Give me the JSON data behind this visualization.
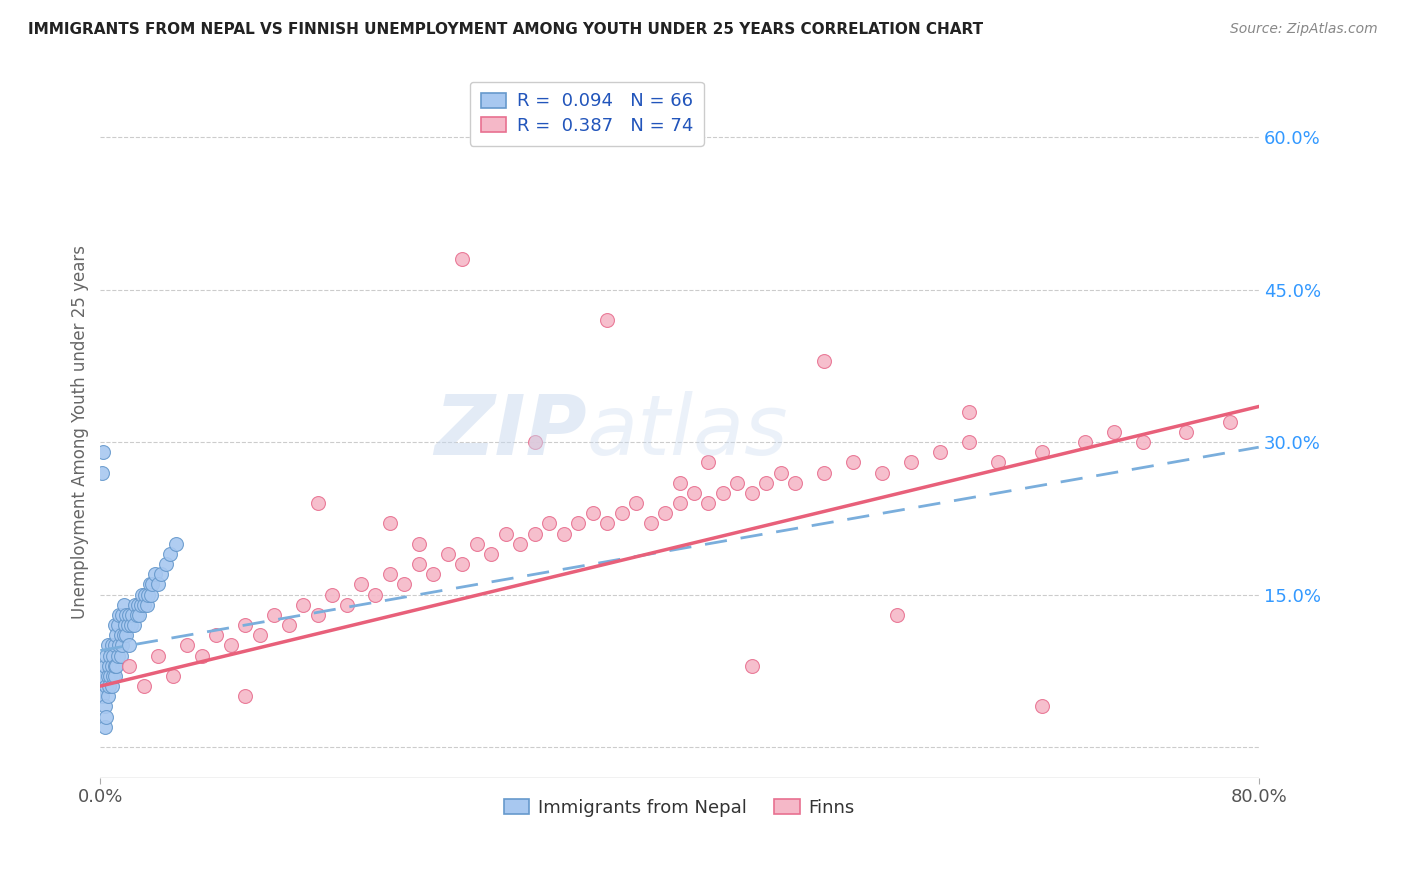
{
  "title": "IMMIGRANTS FROM NEPAL VS FINNISH UNEMPLOYMENT AMONG YOUTH UNDER 25 YEARS CORRELATION CHART",
  "source": "Source: ZipAtlas.com",
  "ylabel": "Unemployment Among Youth under 25 years",
  "legend_label_blue": "Immigrants from Nepal",
  "legend_label_pink": "Finns",
  "r_blue": 0.094,
  "n_blue": 66,
  "r_pink": 0.387,
  "n_pink": 74,
  "color_blue_fill": "#a8c8f0",
  "color_blue_edge": "#6699cc",
  "color_pink_fill": "#f5b8c8",
  "color_pink_edge": "#e87090",
  "color_blue_line": "#7aaedc",
  "color_pink_line": "#e8607a",
  "color_r_value": "#2255bb",
  "yticks_right": [
    0.0,
    0.15,
    0.3,
    0.45,
    0.6
  ],
  "ytick_labels_right": [
    "",
    "15.0%",
    "30.0%",
    "45.0%",
    "60.0%"
  ],
  "xmin": 0.0,
  "xmax": 0.8,
  "ymin": -0.03,
  "ymax": 0.65,
  "blue_scatter_x": [
    0.001,
    0.002,
    0.003,
    0.003,
    0.004,
    0.004,
    0.005,
    0.005,
    0.005,
    0.006,
    0.006,
    0.007,
    0.007,
    0.008,
    0.008,
    0.008,
    0.009,
    0.009,
    0.01,
    0.01,
    0.01,
    0.01,
    0.011,
    0.011,
    0.012,
    0.012,
    0.013,
    0.013,
    0.014,
    0.014,
    0.015,
    0.015,
    0.016,
    0.016,
    0.017,
    0.018,
    0.018,
    0.019,
    0.02,
    0.02,
    0.021,
    0.022,
    0.023,
    0.024,
    0.025,
    0.026,
    0.027,
    0.028,
    0.029,
    0.03,
    0.031,
    0.032,
    0.033,
    0.034,
    0.035,
    0.036,
    0.038,
    0.04,
    0.042,
    0.045,
    0.048,
    0.052,
    0.001,
    0.002,
    0.003,
    0.004
  ],
  "blue_scatter_y": [
    0.05,
    0.07,
    0.04,
    0.08,
    0.06,
    0.09,
    0.05,
    0.07,
    0.1,
    0.06,
    0.08,
    0.07,
    0.09,
    0.06,
    0.08,
    0.1,
    0.07,
    0.09,
    0.07,
    0.08,
    0.1,
    0.12,
    0.08,
    0.11,
    0.09,
    0.12,
    0.1,
    0.13,
    0.09,
    0.11,
    0.1,
    0.13,
    0.11,
    0.14,
    0.12,
    0.11,
    0.13,
    0.12,
    0.1,
    0.13,
    0.12,
    0.13,
    0.12,
    0.14,
    0.13,
    0.14,
    0.13,
    0.14,
    0.15,
    0.14,
    0.15,
    0.14,
    0.15,
    0.16,
    0.15,
    0.16,
    0.17,
    0.16,
    0.17,
    0.18,
    0.19,
    0.2,
    0.27,
    0.29,
    0.02,
    0.03
  ],
  "pink_scatter_x": [
    0.02,
    0.03,
    0.04,
    0.05,
    0.06,
    0.07,
    0.08,
    0.09,
    0.1,
    0.11,
    0.12,
    0.13,
    0.14,
    0.15,
    0.16,
    0.17,
    0.18,
    0.19,
    0.2,
    0.21,
    0.22,
    0.23,
    0.24,
    0.25,
    0.26,
    0.27,
    0.28,
    0.29,
    0.3,
    0.31,
    0.32,
    0.33,
    0.34,
    0.35,
    0.36,
    0.37,
    0.38,
    0.39,
    0.4,
    0.41,
    0.42,
    0.43,
    0.44,
    0.45,
    0.46,
    0.47,
    0.48,
    0.5,
    0.52,
    0.54,
    0.56,
    0.58,
    0.6,
    0.62,
    0.65,
    0.68,
    0.7,
    0.72,
    0.75,
    0.78,
    0.25,
    0.35,
    0.42,
    0.5,
    0.3,
    0.6,
    0.2,
    0.15,
    0.4,
    0.1,
    0.55,
    0.22,
    0.45,
    0.65
  ],
  "pink_scatter_y": [
    0.08,
    0.06,
    0.09,
    0.07,
    0.1,
    0.09,
    0.11,
    0.1,
    0.12,
    0.11,
    0.13,
    0.12,
    0.14,
    0.13,
    0.15,
    0.14,
    0.16,
    0.15,
    0.17,
    0.16,
    0.18,
    0.17,
    0.19,
    0.18,
    0.2,
    0.19,
    0.21,
    0.2,
    0.21,
    0.22,
    0.21,
    0.22,
    0.23,
    0.22,
    0.23,
    0.24,
    0.22,
    0.23,
    0.24,
    0.25,
    0.24,
    0.25,
    0.26,
    0.25,
    0.26,
    0.27,
    0.26,
    0.27,
    0.28,
    0.27,
    0.28,
    0.29,
    0.3,
    0.28,
    0.29,
    0.3,
    0.31,
    0.3,
    0.31,
    0.32,
    0.48,
    0.42,
    0.28,
    0.38,
    0.3,
    0.33,
    0.22,
    0.24,
    0.26,
    0.05,
    0.13,
    0.2,
    0.08,
    0.04
  ],
  "blue_line_x": [
    0.0,
    0.8
  ],
  "blue_line_y_start": 0.095,
  "blue_line_y_end": 0.295,
  "pink_line_x": [
    0.0,
    0.8
  ],
  "pink_line_y_start": 0.06,
  "pink_line_y_end": 0.335
}
